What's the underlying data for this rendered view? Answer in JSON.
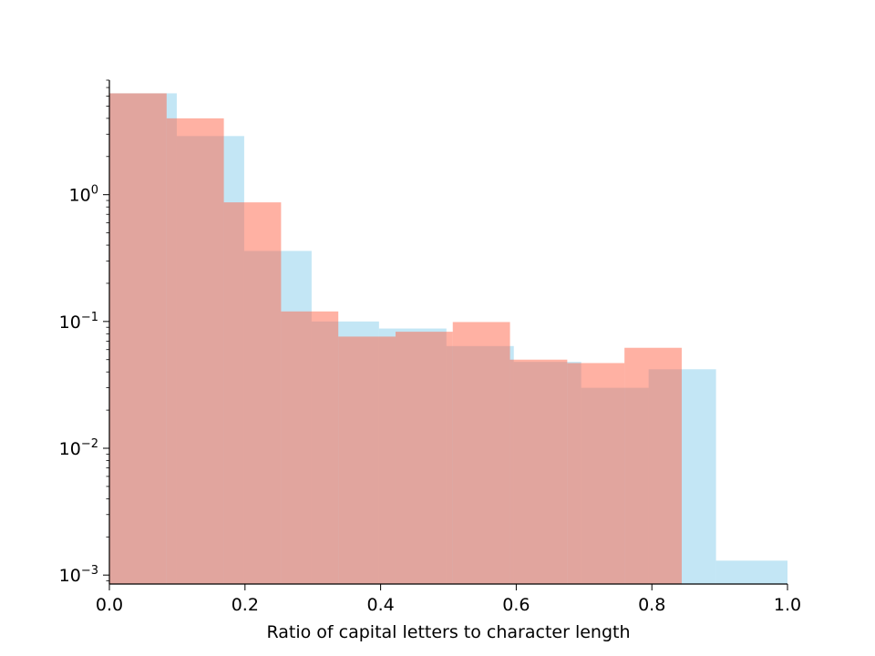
{
  "chart_data": {
    "type": "bar",
    "title": "",
    "xlabel": "Ratio of capital letters to character length",
    "ylabel": "",
    "xlim": [
      0.0,
      1.0
    ],
    "ylim": [
      0.00085,
      8.0
    ],
    "yscale": "log",
    "grid": false,
    "x_ticks": [
      "0.0",
      "0.2",
      "0.4",
      "0.6",
      "0.8",
      "1.0"
    ],
    "y_ticks": [
      {
        "base": "10",
        "exp": "0",
        "value": 1
      },
      {
        "base": "10",
        "exp": "−1",
        "value": 0.1
      },
      {
        "base": "10",
        "exp": "−2",
        "value": 0.01
      },
      {
        "base": "10",
        "exp": "−3",
        "value": 0.001
      }
    ],
    "series": [
      {
        "color": "#87CEEB",
        "opacity": 0.5,
        "bins": [
          {
            "x0": 0.0,
            "x1": 0.0994,
            "value": 6.3
          },
          {
            "x0": 0.0994,
            "x1": 0.1988,
            "value": 2.9
          },
          {
            "x0": 0.1988,
            "x1": 0.2982,
            "value": 0.36
          },
          {
            "x0": 0.2982,
            "x1": 0.3976,
            "value": 0.1
          },
          {
            "x0": 0.3976,
            "x1": 0.497,
            "value": 0.088
          },
          {
            "x0": 0.497,
            "x1": 0.5964,
            "value": 0.064
          },
          {
            "x0": 0.5964,
            "x1": 0.6958,
            "value": 0.048
          },
          {
            "x0": 0.6958,
            "x1": 0.7952,
            "value": 0.03
          },
          {
            "x0": 0.7952,
            "x1": 0.8946,
            "value": 0.042
          },
          {
            "x0": 0.8946,
            "x1": 1.0,
            "value": 0.0013
          }
        ]
      },
      {
        "color": "#FF6347",
        "opacity": 0.5,
        "bins": [
          {
            "x0": 0.0,
            "x1": 0.0844,
            "value": 6.3
          },
          {
            "x0": 0.0844,
            "x1": 0.1688,
            "value": 4.0
          },
          {
            "x0": 0.1688,
            "x1": 0.2532,
            "value": 0.87
          },
          {
            "x0": 0.2532,
            "x1": 0.3376,
            "value": 0.12
          },
          {
            "x0": 0.3376,
            "x1": 0.422,
            "value": 0.076
          },
          {
            "x0": 0.422,
            "x1": 0.5064,
            "value": 0.083
          },
          {
            "x0": 0.5064,
            "x1": 0.5908,
            "value": 0.099
          },
          {
            "x0": 0.5908,
            "x1": 0.6752,
            "value": 0.05
          },
          {
            "x0": 0.6752,
            "x1": 0.7596,
            "value": 0.047
          },
          {
            "x0": 0.7596,
            "x1": 0.844,
            "value": 0.062
          }
        ]
      }
    ]
  }
}
